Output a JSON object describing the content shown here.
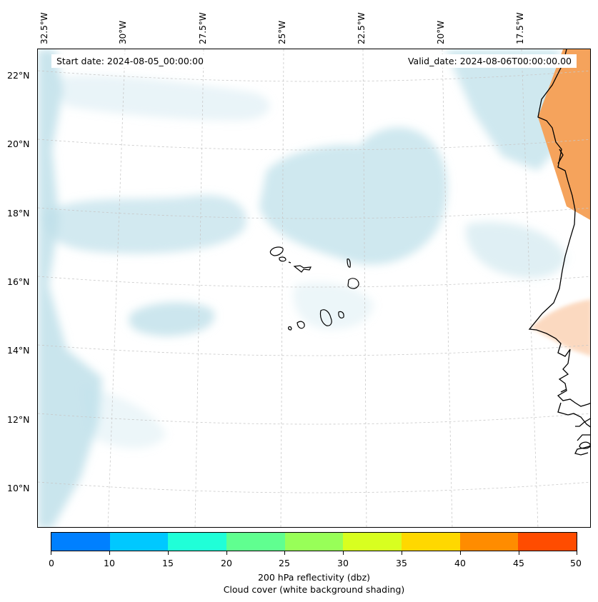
{
  "map": {
    "start_date": "Start date: 2024-08-05_00:00:00",
    "valid_date": "Valid_date: 2024-08-06T00:00:00.00",
    "lon_labels": [
      "32.5°W",
      "30°W",
      "27.5°W",
      "25°W",
      "22.5°W",
      "20°W",
      "17.5°W"
    ],
    "lat_labels": [
      "22°N",
      "20°N",
      "18°N",
      "16°N",
      "14°N",
      "12°N",
      "10°N"
    ],
    "colors": {
      "land_reflectivity": "#f5a35c",
      "cloud_shading": "#bfe0ea",
      "coastline": "#000000",
      "gridline": "#c8c8c8"
    }
  },
  "colorbar": {
    "ticks": [
      "0",
      "10",
      "15",
      "20",
      "25",
      "30",
      "35",
      "40",
      "45",
      "50"
    ],
    "colors": [
      "#0080ff",
      "#00c8ff",
      "#20ffd8",
      "#60ff90",
      "#98ff58",
      "#d8ff20",
      "#ffd800",
      "#ff8c00",
      "#ff4c00"
    ],
    "label_line1": "200 hPa reflectivity (dbz)",
    "label_line2": "Cloud cover (white background shading)"
  }
}
